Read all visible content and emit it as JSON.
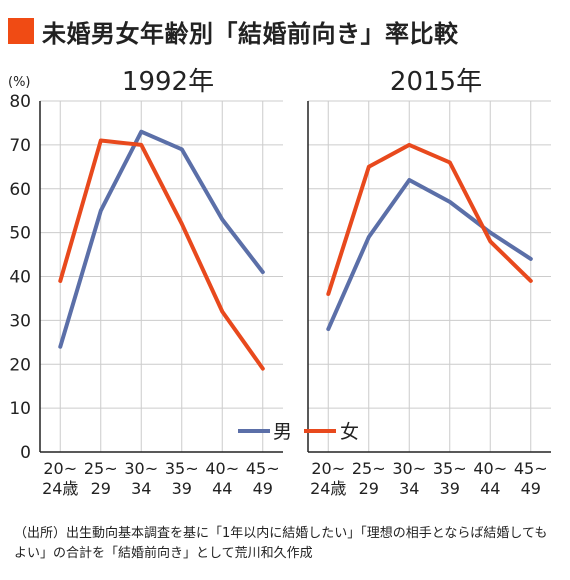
{
  "title": "未婚男女年齢別「結婚前向き」率比較",
  "colors": {
    "accent": "#f04b14",
    "male": "#5b6fa8",
    "female": "#e8491d",
    "grid": "#cccccc",
    "axis": "#222222"
  },
  "legend": {
    "male": "男",
    "female": "女"
  },
  "source_note": "（出所）出生動向基本調査を基に「1年以内に結婚したい」「理想の相手とならば結婚してもよい」の合計を「結婚前向き」として荒川和久作成",
  "chart_data": [
    {
      "type": "line",
      "title": "1992年",
      "categories": [
        "20~\n24歳",
        "25~\n29",
        "30~\n34",
        "35~\n39",
        "40~\n44",
        "45~\n49"
      ],
      "series": [
        {
          "name": "男",
          "values": [
            24,
            55,
            73,
            69,
            53,
            41
          ]
        },
        {
          "name": "女",
          "values": [
            39,
            71,
            70,
            52,
            32,
            19
          ]
        }
      ],
      "ylabel": "(%)",
      "ylim": [
        0,
        80
      ],
      "yticks": [
        0,
        10,
        20,
        30,
        40,
        50,
        60,
        70,
        80
      ],
      "grid": true
    },
    {
      "type": "line",
      "title": "2015年",
      "categories": [
        "20~\n24歳",
        "25~\n29",
        "30~\n34",
        "35~\n39",
        "40~\n44",
        "45~\n49"
      ],
      "series": [
        {
          "name": "男",
          "values": [
            28,
            49,
            62,
            57,
            50,
            44
          ]
        },
        {
          "name": "女",
          "values": [
            36,
            65,
            70,
            66,
            48,
            39
          ]
        }
      ],
      "ylim": [
        0,
        80
      ],
      "grid": true
    }
  ]
}
